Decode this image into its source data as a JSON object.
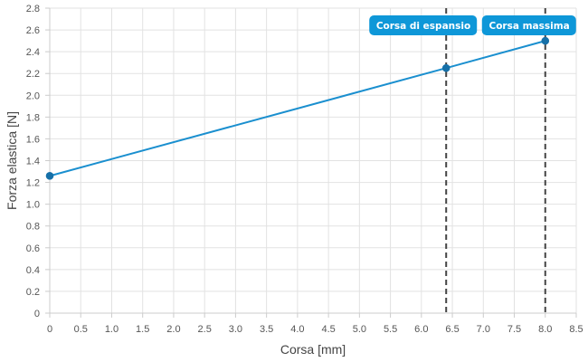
{
  "chart_data": {
    "type": "line",
    "title": "",
    "xlabel": "Corsa [mm]",
    "ylabel": "Forza elastica [N]",
    "xlim": [
      0,
      8.5
    ],
    "ylim": [
      0,
      2.8
    ],
    "x_ticks": [
      "0",
      "0.5",
      "1.0",
      "1.5",
      "2.0",
      "2.5",
      "3.0",
      "3.5",
      "4.0",
      "4.5",
      "5.0",
      "5.5",
      "6.0",
      "6.5",
      "7.0",
      "7.5",
      "8.0",
      "8.5"
    ],
    "y_ticks": [
      "0",
      "0.2",
      "0.4",
      "0.6",
      "0.8",
      "1.0",
      "1.2",
      "1.4",
      "1.6",
      "1.8",
      "2.0",
      "2.2",
      "2.4",
      "2.6",
      "2.8"
    ],
    "grid": true,
    "legend": "none",
    "series": [
      {
        "color": "#1a8fcf",
        "points": [
          {
            "x": 0,
            "y": 1.26
          },
          {
            "x": 6.4,
            "y": 2.25
          },
          {
            "x": 8.0,
            "y": 2.5
          }
        ]
      }
    ],
    "annotations": [
      {
        "x": 6.4,
        "label": "Corsa di espansio",
        "line_style": "dashed",
        "line_color": "#444444",
        "badge_color": "#0e97d8"
      },
      {
        "x": 8.0,
        "label": "Corsa massima",
        "line_style": "dashed",
        "line_color": "#444444",
        "badge_color": "#0e97d8"
      }
    ]
  }
}
